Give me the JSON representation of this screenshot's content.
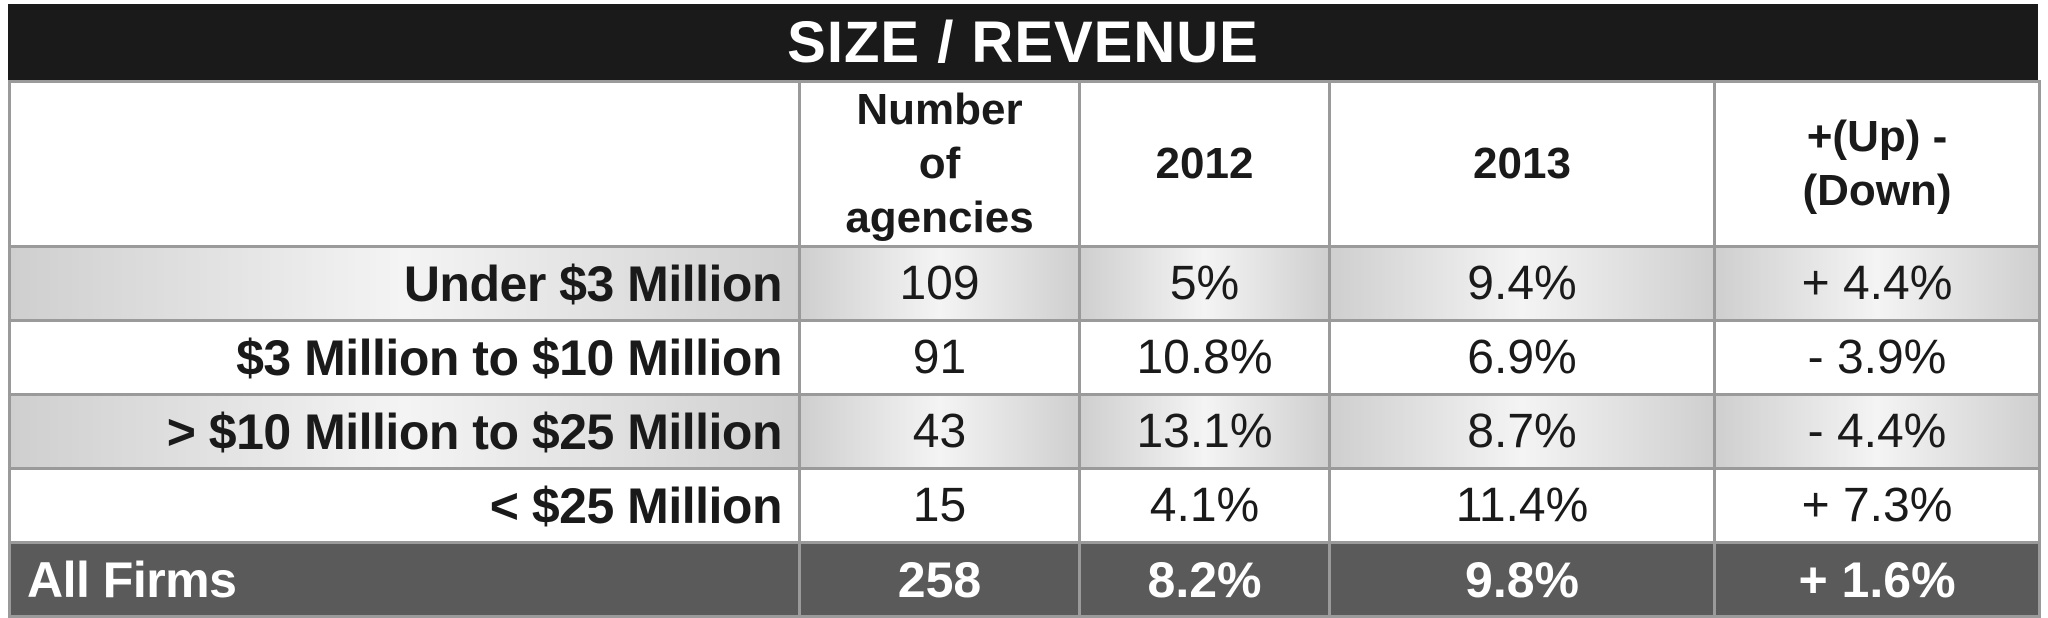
{
  "chart_data": {
    "type": "table",
    "title": "SIZE / REVENUE",
    "columns": [
      "",
      "Number of agencies",
      "2012",
      "2013",
      "+(Up) -(Down)"
    ],
    "header": {
      "col1": "Number of agencies",
      "col2": "2012",
      "col3": "2013",
      "col4": "+(Up) -(Down)"
    },
    "rows": [
      {
        "label": "Under $3 Million",
        "agencies": "109",
        "y2012": "5%",
        "y2013": "9.4%",
        "change": "+ 4.4%"
      },
      {
        "label": "$3 Million to $10 Million",
        "agencies": "91",
        "y2012": "10.8%",
        "y2013": "6.9%",
        "change": "- 3.9%"
      },
      {
        "label": "> $10 Million to $25 Million",
        "agencies": "43",
        "y2012": "13.1%",
        "y2013": "8.7%",
        "change": "- 4.4%"
      },
      {
        "label": "< $25 Million",
        "agencies": "15",
        "y2012": "4.1%",
        "y2013": "11.4%",
        "change": "+ 7.3%"
      }
    ],
    "total": {
      "label": "All Firms",
      "agencies": "258",
      "y2012": "8.2%",
      "y2013": "9.8%",
      "change": "+ 1.6%"
    }
  }
}
